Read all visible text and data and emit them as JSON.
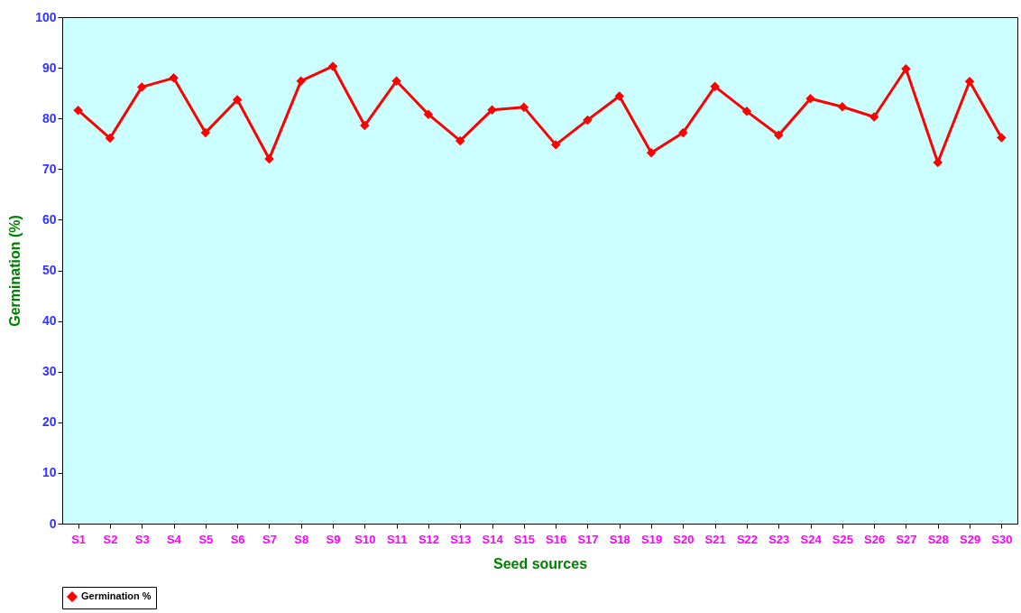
{
  "chart_data": {
    "type": "line",
    "xlabel": "Seed sources",
    "ylabel": "Germination (%)",
    "categories": [
      "S1",
      "S2",
      "S3",
      "S4",
      "S5",
      "S6",
      "S7",
      "S8",
      "S9",
      "S10",
      "S11",
      "S12",
      "S13",
      "S14",
      "S15",
      "S16",
      "S17",
      "S18",
      "S19",
      "S20",
      "S21",
      "S22",
      "S23",
      "S24",
      "S25",
      "S26",
      "S27",
      "S28",
      "S29",
      "S30"
    ],
    "series": [
      {
        "name": "Germination %",
        "color": "#ff0000",
        "values": [
          81.6,
          76.1,
          86.2,
          88.0,
          77.2,
          83.7,
          72.0,
          87.4,
          90.3,
          78.6,
          87.4,
          80.8,
          75.6,
          81.7,
          82.2,
          74.8,
          79.7,
          84.4,
          73.2,
          77.2,
          86.3,
          81.4,
          76.7,
          83.9,
          82.3,
          80.3,
          89.8,
          71.3,
          87.3,
          76.2
        ]
      }
    ],
    "ylim": [
      0,
      100
    ],
    "yticks": [
      0,
      10,
      20,
      30,
      40,
      50,
      60,
      70,
      80,
      90,
      100
    ],
    "grid": false,
    "legend": "bottom",
    "marker": "diamond",
    "line_style": "solid"
  }
}
